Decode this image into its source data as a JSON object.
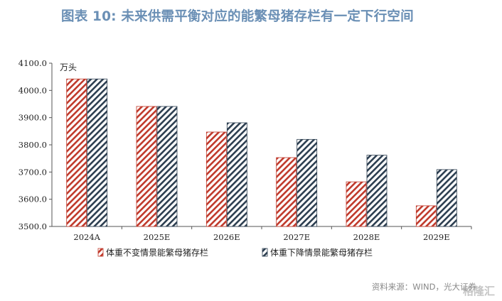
{
  "title": "图表 10: 未来供需平衡对应的能繁母猪存栏有一定下行空间",
  "source": "资料来源：WIND，光大证券",
  "watermark": "格隆汇",
  "colors": {
    "series_a": "#c0392b",
    "series_b": "#2c3e50",
    "title": "#6a8fb5"
  },
  "chart_data": {
    "type": "bar",
    "unit": "万头",
    "categories": [
      "2024A",
      "2025E",
      "2026E",
      "2027E",
      "2028E",
      "2029E"
    ],
    "series": [
      {
        "name": "体重不变情景能繁母猪存栏",
        "values": [
          4042,
          3941,
          3847,
          3753,
          3664,
          3576
        ]
      },
      {
        "name": "体重下降情景能繁母猪存栏",
        "values": [
          4042,
          3941,
          3881,
          3820,
          3762,
          3709
        ]
      }
    ],
    "ylim": [
      3500,
      4100
    ],
    "yticks": [
      "3500.0",
      "3600.0",
      "3700.0",
      "3800.0",
      "3900.0",
      "4000.0",
      "4100.0"
    ],
    "legend": "bottom",
    "grid": false
  }
}
